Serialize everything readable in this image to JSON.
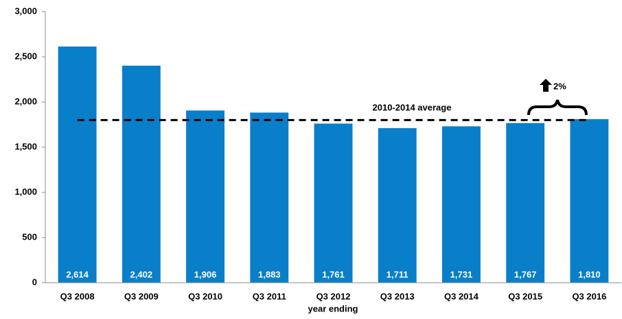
{
  "chart_data": {
    "type": "bar",
    "categories": [
      "Q3 2008",
      "Q3 2009",
      "Q3 2010",
      "Q3 2011",
      "Q3 2012",
      "Q3 2013",
      "Q3 2014",
      "Q3 2015",
      "Q3 2016"
    ],
    "values": [
      2614,
      2402,
      1906,
      1883,
      1761,
      1711,
      1731,
      1767,
      1810
    ],
    "value_labels": [
      "2,614",
      "2,402",
      "1,906",
      "1,883",
      "1,761",
      "1,711",
      "1,731",
      "1,767",
      "1,810"
    ],
    "color": "#0a7fc9",
    "x_label": "year ending",
    "ylim": [
      0,
      3000
    ],
    "yticks": [
      0,
      500,
      {
        "value": 1000,
        "label": "1,000"
      },
      {
        "value": 1500,
        "label": "1,500"
      },
      {
        "value": 2000,
        "label": "2,000"
      },
      {
        "value": 2500,
        "label": "2,500"
      },
      {
        "value": 3000,
        "label": "3,000"
      }
    ],
    "average_line": {
      "label": "2010-2014 average",
      "value": 1800
    },
    "change_label": "2%"
  }
}
